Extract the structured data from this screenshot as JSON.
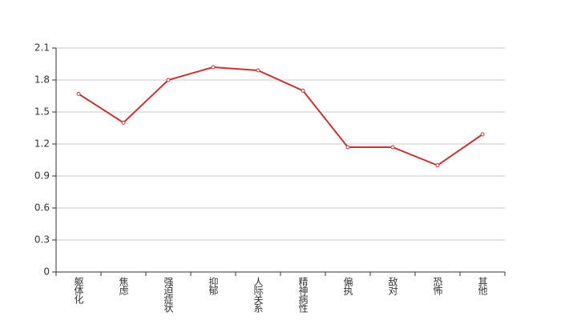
{
  "chart_data": {
    "type": "line",
    "categories": [
      "躯体化",
      "焦虑",
      "强迫症状",
      "抑郁",
      "人际关系",
      "精神病性",
      "偏执",
      "敌对",
      "恐怖",
      "其他"
    ],
    "values": [
      1.67,
      1.4,
      1.8,
      1.92,
      1.89,
      1.7,
      1.17,
      1.17,
      1.0,
      1.29
    ],
    "color": "#c23531",
    "ylim": [
      0,
      2.1
    ],
    "yticks": [
      0,
      0.3,
      0.6,
      0.9,
      1.2,
      1.5,
      1.8,
      2.1
    ],
    "grid": true
  }
}
